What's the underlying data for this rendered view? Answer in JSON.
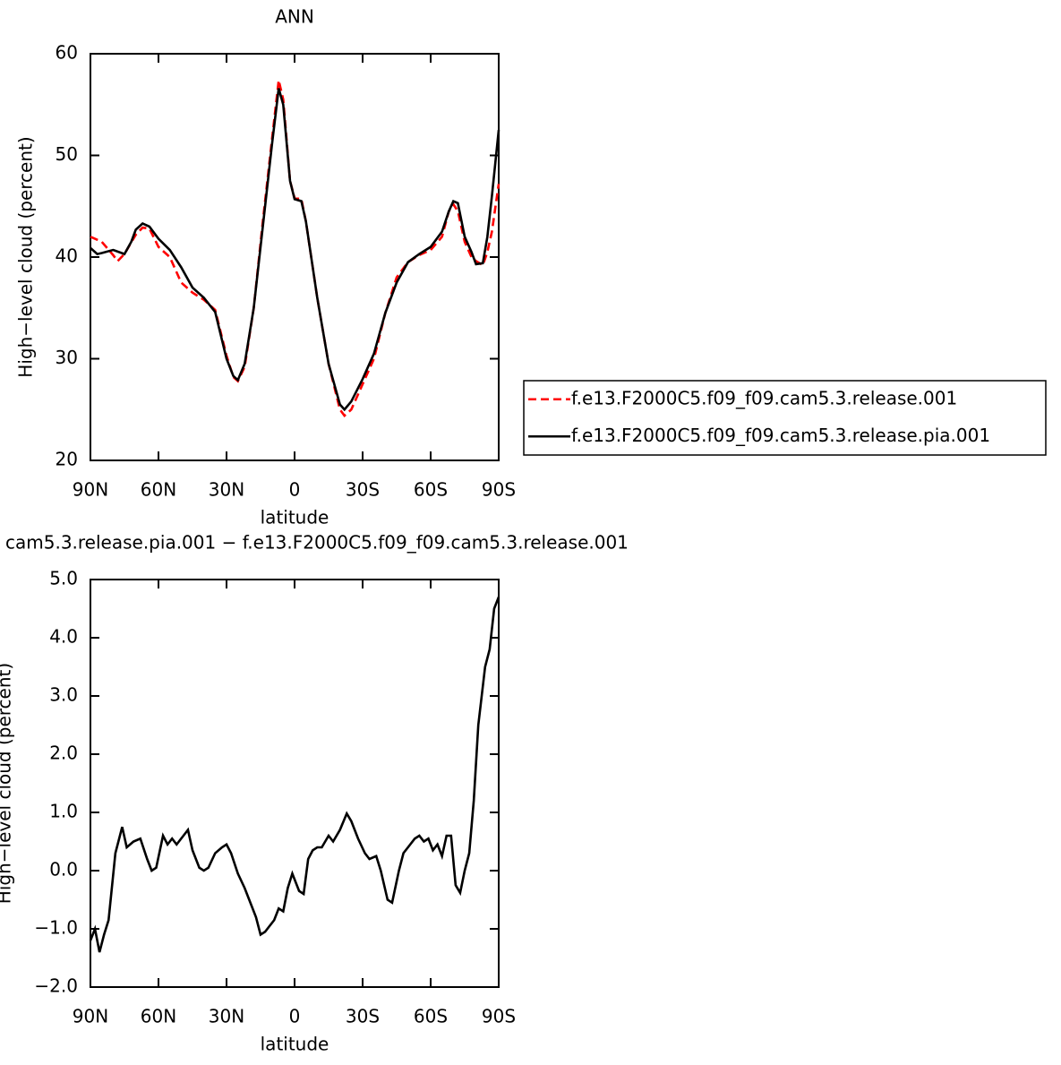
{
  "chart_data": [
    {
      "type": "line",
      "title": "ANN",
      "xlabel": "latitude",
      "ylabel": "High−level cloud (percent)",
      "xlim": [
        90,
        -90
      ],
      "xticks": [
        {
          "value": 90,
          "label": "90N"
        },
        {
          "value": 60,
          "label": "60N"
        },
        {
          "value": 30,
          "label": "30N"
        },
        0,
        {
          "value": -30,
          "label": "30S"
        },
        {
          "value": -60,
          "label": "60S"
        },
        {
          "value": -90,
          "label": "90S"
        }
      ],
      "ylim": [
        20,
        60
      ],
      "yticks": [
        20,
        30,
        40,
        50,
        60
      ],
      "legend": "outside right",
      "series": [
        {
          "name": "f.e13.F2000C5.f09_f09.cam5.3.release.001",
          "color": "#ff0000",
          "line_style": "dashed",
          "x": [
            90,
            85,
            80,
            78,
            75,
            70,
            67,
            64,
            60,
            55,
            50,
            45,
            40,
            35,
            30,
            27,
            25,
            22,
            18,
            14,
            10,
            7,
            5,
            2,
            0,
            -3,
            -5,
            -10,
            -15,
            -20,
            -22,
            -25,
            -30,
            -35,
            -40,
            -45,
            -50,
            -55,
            -60,
            -65,
            -68,
            -70,
            -72,
            -75,
            -78,
            -80,
            -83,
            -85,
            -87,
            -90
          ],
          "values": [
            42.0,
            41.5,
            40.2,
            39.6,
            40.3,
            42.2,
            42.9,
            42.8,
            41.0,
            40.0,
            37.5,
            36.5,
            35.8,
            34.8,
            30.3,
            28.2,
            27.8,
            29.2,
            35.0,
            43.5,
            51.5,
            57.4,
            55.5,
            47.5,
            45.8,
            45.7,
            43.5,
            36.0,
            29.5,
            25.0,
            24.4,
            25.0,
            27.5,
            30.0,
            34.5,
            38.0,
            39.5,
            40.2,
            40.7,
            42.0,
            44.5,
            45.2,
            44.5,
            41.5,
            40.0,
            39.6,
            39.2,
            40.5,
            42.5,
            47.2
          ]
        },
        {
          "name": "f.e13.F2000C5.f09_f09.cam5.3.release.pia.001",
          "color": "#000000",
          "line_style": "solid",
          "x": [
            90,
            87,
            85,
            80,
            75,
            72,
            70,
            67,
            64,
            60,
            55,
            50,
            45,
            40,
            35,
            30,
            27,
            25,
            22,
            18,
            14,
            10,
            7,
            5,
            2,
            0,
            -3,
            -5,
            -10,
            -15,
            -20,
            -22,
            -25,
            -30,
            -35,
            -40,
            -45,
            -50,
            -55,
            -60,
            -65,
            -68,
            -70,
            -72,
            -75,
            -78,
            -80,
            -83,
            -85,
            -87,
            -90
          ],
          "values": [
            40.9,
            40.3,
            40.4,
            40.7,
            40.3,
            41.5,
            42.7,
            43.3,
            43.0,
            41.8,
            40.7,
            39.0,
            37.0,
            36.0,
            34.6,
            30.0,
            28.3,
            27.9,
            29.5,
            35.0,
            43.0,
            51.0,
            56.6,
            55.0,
            47.5,
            45.7,
            45.5,
            43.5,
            36.0,
            29.5,
            25.5,
            25.0,
            25.8,
            28.0,
            30.5,
            34.5,
            37.5,
            39.5,
            40.3,
            41.0,
            42.5,
            44.5,
            45.5,
            45.3,
            42.0,
            40.5,
            39.3,
            39.4,
            42.0,
            46.0,
            52.5
          ]
        }
      ]
    },
    {
      "type": "line",
      "title": "cam5.3.release.pia.001 − f.e13.F2000C5.f09_f09.cam5.3.release.001",
      "xlabel": "latitude",
      "ylabel": "High−level cloud (percent)",
      "xlim": [
        90,
        -90
      ],
      "xticks": [
        {
          "value": 90,
          "label": "90N"
        },
        {
          "value": 60,
          "label": "60N"
        },
        {
          "value": 30,
          "label": "30N"
        },
        0,
        {
          "value": -30,
          "label": "30S"
        },
        {
          "value": -60,
          "label": "60S"
        },
        {
          "value": -90,
          "label": "90S"
        }
      ],
      "ylim": [
        -2,
        5
      ],
      "yticks": [
        {
          "value": -2,
          "label": "−2.0"
        },
        {
          "value": -1,
          "label": "−1.0"
        },
        {
          "value": 0,
          "label": "0.0"
        },
        {
          "value": 1,
          "label": "1.0"
        },
        {
          "value": 2,
          "label": "2.0"
        },
        {
          "value": 3,
          "label": "3.0"
        },
        {
          "value": 4,
          "label": "4.0"
        },
        {
          "value": 5,
          "label": "5.0"
        }
      ],
      "series": [
        {
          "color": "#000000",
          "line_style": "solid",
          "x": [
            90,
            88,
            86,
            84,
            82,
            79,
            76,
            74,
            71,
            68,
            65,
            63,
            61,
            58,
            56,
            54,
            52,
            49,
            47,
            45,
            42,
            40,
            38,
            35,
            32,
            30,
            28,
            25,
            22,
            19,
            17,
            15,
            13,
            11,
            9,
            7,
            5,
            3,
            1,
            -2,
            -4,
            -6,
            -8,
            -10,
            -12,
            -15,
            -17,
            -20,
            -23,
            -25,
            -28,
            -31,
            -33,
            -36,
            -38,
            -41,
            -43,
            -46,
            -48,
            -50,
            -53,
            -55,
            -57,
            -59,
            -61,
            -63,
            -65,
            -67,
            -69,
            -71,
            -73,
            -75,
            -77,
            -79,
            -81,
            -84,
            -86,
            -88,
            -90
          ],
          "values": [
            -1.2,
            -1.0,
            -1.4,
            -1.1,
            -0.85,
            0.3,
            0.75,
            0.4,
            0.5,
            0.55,
            0.2,
            0.0,
            0.05,
            0.6,
            0.45,
            0.55,
            0.45,
            0.6,
            0.7,
            0.35,
            0.05,
            0.0,
            0.05,
            0.3,
            0.4,
            0.45,
            0.3,
            -0.05,
            -0.3,
            -0.6,
            -0.8,
            -1.1,
            -1.05,
            -0.95,
            -0.85,
            -0.65,
            -0.7,
            -0.3,
            -0.05,
            -0.35,
            -0.4,
            0.2,
            0.35,
            0.4,
            0.4,
            0.6,
            0.5,
            0.7,
            0.98,
            0.85,
            0.55,
            0.3,
            0.2,
            0.25,
            0.0,
            -0.5,
            -0.55,
            0.0,
            0.3,
            0.4,
            0.55,
            0.6,
            0.5,
            0.55,
            0.35,
            0.45,
            0.25,
            0.6,
            0.6,
            -0.25,
            -0.38,
            0.0,
            0.3,
            1.2,
            2.5,
            3.5,
            3.8,
            4.5,
            4.7
          ]
        }
      ]
    }
  ]
}
